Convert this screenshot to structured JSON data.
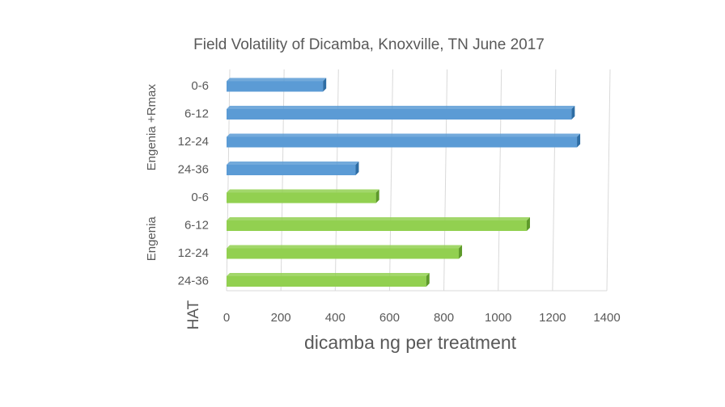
{
  "chart_data": {
    "type": "bar",
    "orientation": "horizontal",
    "title": "Field Volatility of Dicamba, Knoxville, TN June 2017",
    "xlabel": "dicamba ng per treatment",
    "ylabel": "HAT",
    "xlim": [
      0,
      1400
    ],
    "x_ticks": [
      "0",
      "200",
      "400",
      "600",
      "800",
      "1000",
      "1200",
      "1400"
    ],
    "grid": "vertical",
    "legend": "none",
    "groups": [
      {
        "name": "Engenia +Rmax",
        "color": "#5B9BD5",
        "side_color": "#2E6DA4",
        "categories": [
          "0-6",
          "6-12",
          "12-24",
          "24-36"
        ],
        "values": [
          355,
          1270,
          1290,
          475
        ]
      },
      {
        "name": "Engenia",
        "color": "#92D050",
        "side_color": "#5E9A2A",
        "categories": [
          "0-6",
          "6-12",
          "12-24",
          "24-36"
        ],
        "values": [
          550,
          1105,
          855,
          735
        ]
      }
    ]
  }
}
